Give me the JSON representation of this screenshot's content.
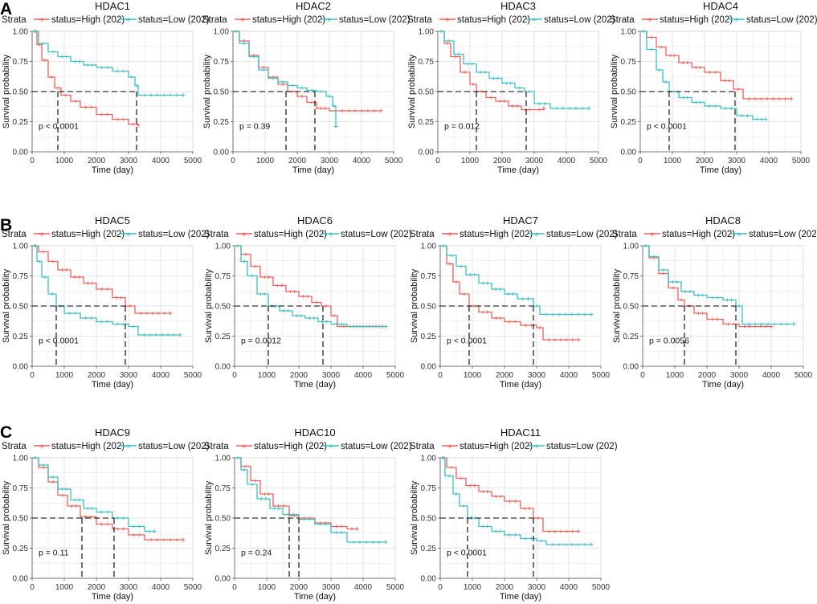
{
  "panel_labels": [
    "A",
    "B",
    "C"
  ],
  "colors": {
    "high": "#e8625a",
    "low": "#3ebdc2",
    "grid": "#dcdcdc",
    "median": "#000000"
  },
  "common": {
    "xlabel": "Time (day)",
    "ylabel": "Survival probability",
    "strata_label": "Strata",
    "high_label": "status=High (202)",
    "low_label": "status=Low (202)",
    "xticks": [
      "0",
      "1000",
      "2000",
      "3000",
      "4000",
      "5000"
    ],
    "yticks": [
      "0.00",
      "0.25",
      "0.50",
      "0.75",
      "1.00"
    ],
    "xlim": [
      0,
      5000
    ],
    "ylim": [
      0,
      1
    ]
  },
  "chart_data": [
    {
      "type": "line",
      "title": "HDAC1",
      "pvalue": "p < 0.0001",
      "median_x": [
        800,
        3250
      ],
      "series": [
        {
          "name": "status=High (202)",
          "x": [
            0,
            150,
            300,
            500,
            700,
            900,
            1200,
            1500,
            2000,
            2500,
            3000,
            3300
          ],
          "y": [
            1,
            0.89,
            0.76,
            0.62,
            0.53,
            0.47,
            0.42,
            0.37,
            0.31,
            0.27,
            0.23,
            0.22
          ]
        },
        {
          "name": "status=Low (202)",
          "x": [
            0,
            200,
            500,
            800,
            1200,
            1600,
            2000,
            2500,
            3000,
            3200,
            3300,
            4700
          ],
          "y": [
            1,
            0.9,
            0.83,
            0.79,
            0.75,
            0.72,
            0.7,
            0.67,
            0.62,
            0.55,
            0.47,
            0.47
          ]
        }
      ]
    },
    {
      "type": "line",
      "title": "HDAC2",
      "pvalue": "p = 0.39",
      "median_x": [
        1650,
        2550
      ],
      "series": [
        {
          "name": "status=High (202)",
          "x": [
            0,
            200,
            500,
            800,
            1100,
            1400,
            1700,
            2000,
            2300,
            2600,
            3000,
            4600
          ],
          "y": [
            1,
            0.92,
            0.8,
            0.7,
            0.62,
            0.56,
            0.5,
            0.46,
            0.41,
            0.36,
            0.34,
            0.34
          ]
        },
        {
          "name": "status=Low (202)",
          "x": [
            0,
            200,
            500,
            800,
            1100,
            1400,
            1700,
            2000,
            2300,
            2600,
            2900,
            3100,
            3200
          ],
          "y": [
            1,
            0.9,
            0.79,
            0.68,
            0.61,
            0.58,
            0.55,
            0.53,
            0.51,
            0.5,
            0.46,
            0.38,
            0.21
          ]
        }
      ]
    },
    {
      "type": "line",
      "title": "HDAC3",
      "pvalue": "p = 0.012",
      "median_x": [
        1200,
        2750
      ],
      "series": [
        {
          "name": "status=High (202)",
          "x": [
            0,
            200,
            400,
            700,
            1000,
            1200,
            1500,
            1800,
            2200,
            2600,
            3000,
            3300
          ],
          "y": [
            1,
            0.9,
            0.79,
            0.66,
            0.56,
            0.5,
            0.45,
            0.42,
            0.38,
            0.35,
            0.35,
            0.36
          ]
        },
        {
          "name": "status=Low (202)",
          "x": [
            0,
            200,
            500,
            800,
            1200,
            1600,
            2000,
            2400,
            2700,
            3000,
            3500,
            4700
          ],
          "y": [
            1,
            0.92,
            0.81,
            0.73,
            0.66,
            0.61,
            0.57,
            0.53,
            0.5,
            0.4,
            0.36,
            0.36
          ]
        }
      ]
    },
    {
      "type": "line",
      "title": "HDAC4",
      "pvalue": "p < 0.0001",
      "median_x": [
        900,
        2950
      ],
      "series": [
        {
          "name": "status=High (202)",
          "x": [
            0,
            200,
            500,
            800,
            1200,
            1600,
            2000,
            2500,
            2900,
            3200,
            4700
          ],
          "y": [
            1,
            0.95,
            0.87,
            0.8,
            0.74,
            0.7,
            0.66,
            0.59,
            0.52,
            0.44,
            0.44
          ]
        },
        {
          "name": "status=Low (202)",
          "x": [
            0,
            200,
            500,
            700,
            900,
            1200,
            1600,
            2000,
            2500,
            3000,
            3500,
            3900
          ],
          "y": [
            1,
            0.85,
            0.68,
            0.58,
            0.5,
            0.45,
            0.41,
            0.38,
            0.36,
            0.3,
            0.27,
            0.27
          ]
        }
      ]
    },
    {
      "type": "line",
      "title": "HDAC5",
      "pvalue": "p < 0.0001",
      "median_x": [
        750,
        2900
      ],
      "series": [
        {
          "name": "status=High (202)",
          "x": [
            0,
            200,
            500,
            800,
            1200,
            1600,
            2000,
            2500,
            2900,
            3200,
            4300
          ],
          "y": [
            1,
            0.95,
            0.87,
            0.8,
            0.74,
            0.69,
            0.64,
            0.57,
            0.5,
            0.44,
            0.44
          ]
        },
        {
          "name": "status=Low (202)",
          "x": [
            0,
            150,
            300,
            500,
            750,
            1000,
            1500,
            2000,
            2500,
            3000,
            3300,
            4600
          ],
          "y": [
            1,
            0.87,
            0.74,
            0.6,
            0.5,
            0.44,
            0.4,
            0.37,
            0.35,
            0.33,
            0.26,
            0.26
          ]
        }
      ]
    },
    {
      "type": "line",
      "title": "HDAC6",
      "pvalue": "p = 0.0012",
      "median_x": [
        1050,
        2750
      ],
      "series": [
        {
          "name": "status=High (202)",
          "x": [
            0,
            200,
            500,
            800,
            1200,
            1600,
            2000,
            2400,
            2700,
            3000,
            3200,
            4600
          ],
          "y": [
            1,
            0.93,
            0.83,
            0.74,
            0.67,
            0.62,
            0.58,
            0.53,
            0.5,
            0.42,
            0.33,
            0.33
          ]
        },
        {
          "name": "status=Low (202)",
          "x": [
            0,
            200,
            400,
            700,
            1050,
            1400,
            1800,
            2200,
            2600,
            3000,
            3500,
            4700
          ],
          "y": [
            1,
            0.87,
            0.75,
            0.6,
            0.5,
            0.46,
            0.42,
            0.4,
            0.37,
            0.35,
            0.33,
            0.33
          ]
        }
      ]
    },
    {
      "type": "line",
      "title": "HDAC7",
      "pvalue": "p < 0.0001",
      "median_x": [
        900,
        2900
      ],
      "series": [
        {
          "name": "status=High (202)",
          "x": [
            0,
            200,
            400,
            600,
            900,
            1200,
            1600,
            2000,
            2500,
            3000,
            3200,
            4300
          ],
          "y": [
            1,
            0.85,
            0.7,
            0.6,
            0.5,
            0.45,
            0.4,
            0.37,
            0.34,
            0.32,
            0.22,
            0.22
          ]
        },
        {
          "name": "status=Low (202)",
          "x": [
            0,
            200,
            500,
            800,
            1200,
            1600,
            2000,
            2400,
            2900,
            3100,
            4700
          ],
          "y": [
            1,
            0.92,
            0.83,
            0.76,
            0.69,
            0.64,
            0.6,
            0.56,
            0.5,
            0.43,
            0.43
          ]
        }
      ]
    },
    {
      "type": "line",
      "title": "HDAC8",
      "pvalue": "p = 0.0056",
      "median_x": [
        1300,
        2900
      ],
      "series": [
        {
          "name": "status=High (202)",
          "x": [
            0,
            200,
            500,
            800,
            1100,
            1300,
            1600,
            2000,
            2500,
            3000,
            4000
          ],
          "y": [
            1,
            0.9,
            0.77,
            0.65,
            0.55,
            0.5,
            0.44,
            0.39,
            0.35,
            0.33,
            0.33
          ]
        },
        {
          "name": "status=Low (202)",
          "x": [
            0,
            200,
            500,
            800,
            1200,
            1600,
            2000,
            2500,
            2900,
            3100,
            4700
          ],
          "y": [
            1,
            0.91,
            0.8,
            0.7,
            0.62,
            0.59,
            0.57,
            0.55,
            0.5,
            0.35,
            0.35
          ]
        }
      ]
    },
    {
      "type": "line",
      "title": "HDAC9",
      "pvalue": "p = 0.11",
      "median_x": [
        1550,
        2550
      ],
      "series": [
        {
          "name": "status=High (202)",
          "x": [
            0,
            200,
            500,
            800,
            1100,
            1500,
            2000,
            2500,
            3000,
            3500,
            4700
          ],
          "y": [
            1,
            0.92,
            0.8,
            0.69,
            0.6,
            0.51,
            0.45,
            0.41,
            0.36,
            0.32,
            0.32
          ]
        },
        {
          "name": "status=Low (202)",
          "x": [
            0,
            200,
            500,
            800,
            1200,
            1600,
            2000,
            2500,
            3000,
            3500,
            3800
          ],
          "y": [
            1,
            0.94,
            0.84,
            0.74,
            0.65,
            0.58,
            0.55,
            0.5,
            0.43,
            0.39,
            0.39
          ]
        }
      ]
    },
    {
      "type": "line",
      "title": "HDAC10",
      "pvalue": "p = 0.24",
      "median_x": [
        1700,
        2000
      ],
      "series": [
        {
          "name": "status=High (202)",
          "x": [
            0,
            200,
            500,
            800,
            1200,
            1700,
            2000,
            2500,
            3000,
            3500,
            3800
          ],
          "y": [
            1,
            0.93,
            0.81,
            0.7,
            0.6,
            0.52,
            0.5,
            0.46,
            0.43,
            0.41,
            0.41
          ]
        },
        {
          "name": "status=Low (202)",
          "x": [
            0,
            200,
            400,
            700,
            1100,
            1500,
            2000,
            2500,
            3000,
            3500,
            4700
          ],
          "y": [
            1,
            0.9,
            0.78,
            0.66,
            0.58,
            0.53,
            0.49,
            0.45,
            0.38,
            0.3,
            0.3
          ]
        }
      ]
    },
    {
      "type": "line",
      "title": "HDAC11",
      "pvalue": "p < 0.0001",
      "median_x": [
        850,
        2900
      ],
      "series": [
        {
          "name": "status=High (202)",
          "x": [
            0,
            200,
            500,
            800,
            1200,
            1600,
            2000,
            2500,
            2900,
            3200,
            4300
          ],
          "y": [
            1,
            0.92,
            0.83,
            0.77,
            0.72,
            0.68,
            0.64,
            0.58,
            0.5,
            0.39,
            0.39
          ]
        },
        {
          "name": "status=Low (202)",
          "x": [
            0,
            150,
            400,
            600,
            850,
            1200,
            1600,
            2000,
            2500,
            3000,
            3300,
            4700
          ],
          "y": [
            1,
            0.85,
            0.7,
            0.6,
            0.5,
            0.43,
            0.39,
            0.36,
            0.33,
            0.31,
            0.28,
            0.28
          ]
        }
      ]
    }
  ]
}
